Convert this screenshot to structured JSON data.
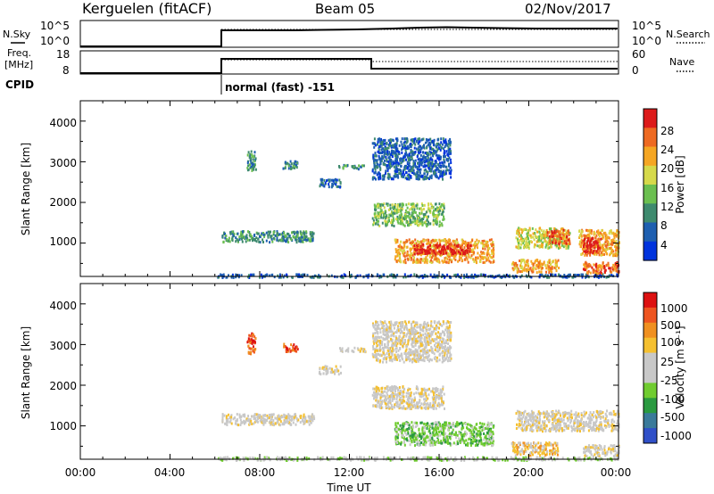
{
  "header": {
    "station": "Kerguelen (fitACF)",
    "beam": "Beam 05",
    "date": "02/Nov/2017"
  },
  "status_panels": {
    "nsky_label": "N.Sky",
    "nsky_top_tick": "10^5",
    "nsky_bottom_tick": "10^0",
    "nsearch_label": "N.Search",
    "nsearch_top_tick": "10^5",
    "nsearch_bottom_tick": "10^0",
    "freq_label": "Freq.",
    "freq_unit": "[MHz]",
    "freq_ticks": [
      "18",
      "8"
    ],
    "nave_label": "Nave",
    "nave_ticks": [
      "60",
      "0"
    ],
    "cpid_label": "CPID",
    "cpid_text": "normal (fast) -151"
  },
  "colors": {
    "axis": "#000000",
    "power_scale": [
      "#0033dd",
      "#1e5fb0",
      "#3e8a6e",
      "#6bbf50",
      "#d6d94a",
      "#f5a623",
      "#ee6a22",
      "#dd1a1a"
    ],
    "velocity_scale": [
      "#3050c8",
      "#3a7a9a",
      "#2a9a40",
      "#70cc30",
      "#c8c8c8",
      "#c8c8c8",
      "#f5c030",
      "#f09020",
      "#ee5520",
      "#dd1111"
    ]
  },
  "chart_data": [
    {
      "type": "heatmap",
      "name": "power",
      "xlabel": "",
      "ylabel": "Slant Range [km]",
      "xlim": [
        0,
        24
      ],
      "ylim": [
        180,
        4500
      ],
      "yticks": [
        "1000",
        "2000",
        "3000",
        "4000"
      ],
      "colorbar_label": "Power [dB]",
      "colorbar_ticks": [
        "4",
        "8",
        "12",
        "16",
        "20",
        "24",
        "28"
      ],
      "features": [
        {
          "t": [
            6.1,
            24.0
          ],
          "r": [
            180,
            260
          ],
          "v": 1
        },
        {
          "t": [
            6.3,
            10.4
          ],
          "r": [
            1050,
            1320
          ],
          "v": 2
        },
        {
          "t": [
            7.4,
            7.8
          ],
          "r": [
            2800,
            3300
          ],
          "v": 2
        },
        {
          "t": [
            9.0,
            9.7
          ],
          "r": [
            2850,
            3050
          ],
          "v": 2
        },
        {
          "t": [
            10.6,
            11.6
          ],
          "r": [
            2400,
            2600
          ],
          "v": 1
        },
        {
          "t": [
            11.5,
            12.7
          ],
          "r": [
            2850,
            2950
          ],
          "v": 2
        },
        {
          "t": [
            13.0,
            16.2
          ],
          "r": [
            1450,
            2000
          ],
          "v": 3
        },
        {
          "t": [
            14.0,
            18.4
          ],
          "r": [
            550,
            1120
          ],
          "v": 5
        },
        {
          "t": [
            14.8,
            17.4
          ],
          "r": [
            760,
            1000
          ],
          "v": 7
        },
        {
          "t": [
            13.0,
            16.5
          ],
          "r": [
            2600,
            3600
          ],
          "v": 1
        },
        {
          "t": [
            19.4,
            21.8
          ],
          "r": [
            900,
            1400
          ],
          "v": 4
        },
        {
          "t": [
            20.8,
            21.8
          ],
          "r": [
            1000,
            1350
          ],
          "v": 6
        },
        {
          "t": [
            22.2,
            24.0
          ],
          "r": [
            720,
            1350
          ],
          "v": 5
        },
        {
          "t": [
            22.4,
            23.2
          ],
          "r": [
            780,
            1150
          ],
          "v": 7
        },
        {
          "t": [
            19.2,
            21.3
          ],
          "r": [
            300,
            620
          ],
          "v": 5
        },
        {
          "t": [
            22.4,
            24.0
          ],
          "r": [
            280,
            560
          ],
          "v": 6
        }
      ]
    },
    {
      "type": "heatmap",
      "name": "velocity",
      "xlabel": "Time UT",
      "ylabel": "Slant Range [km]",
      "xlim": [
        0,
        24
      ],
      "ylim": [
        180,
        4500
      ],
      "xticks": [
        "00:00",
        "04:00",
        "08:00",
        "12:00",
        "16:00",
        "20:00",
        "00:00"
      ],
      "yticks": [
        "1000",
        "2000",
        "3000",
        "4000"
      ],
      "colorbar_label": "Velocity [m s⁻¹]",
      "colorbar_ticks": [
        "1000",
        "500",
        "100",
        "25",
        "-25",
        "-100",
        "-500",
        "-1000"
      ],
      "features": [
        {
          "t": [
            6.1,
            24.0
          ],
          "r": [
            180,
            260
          ],
          "v": 4
        },
        {
          "t": [
            6.3,
            10.4
          ],
          "r": [
            1050,
            1320
          ],
          "v": 5
        },
        {
          "t": [
            7.4,
            7.8
          ],
          "r": [
            2800,
            3300
          ],
          "v": 8
        },
        {
          "t": [
            9.0,
            9.7
          ],
          "r": [
            2850,
            3050
          ],
          "v": 8
        },
        {
          "t": [
            10.6,
            11.6
          ],
          "r": [
            2300,
            2500
          ],
          "v": 5
        },
        {
          "t": [
            11.5,
            12.7
          ],
          "r": [
            2850,
            2950
          ],
          "v": 5
        },
        {
          "t": [
            13.0,
            16.2
          ],
          "r": [
            1450,
            2000
          ],
          "v": 5
        },
        {
          "t": [
            14.0,
            18.4
          ],
          "r": [
            550,
            1120
          ],
          "v": 3
        },
        {
          "t": [
            13.0,
            16.5
          ],
          "r": [
            2600,
            3600
          ],
          "v": 5
        },
        {
          "t": [
            19.4,
            24.0
          ],
          "r": [
            900,
            1400
          ],
          "v": 5
        },
        {
          "t": [
            19.2,
            21.3
          ],
          "r": [
            300,
            620
          ],
          "v": 6
        },
        {
          "t": [
            22.4,
            24.0
          ],
          "r": [
            280,
            560
          ],
          "v": 5
        }
      ]
    }
  ]
}
